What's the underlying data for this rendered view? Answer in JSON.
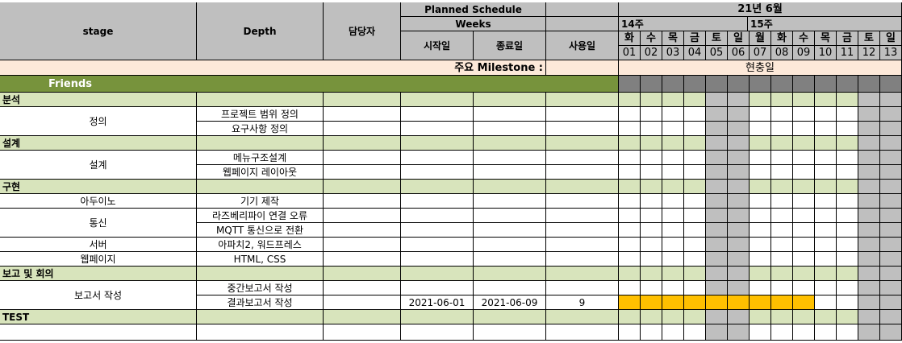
{
  "headers": {
    "stage": "stage",
    "depth": "Depth",
    "owner": "담당자",
    "planned_schedule": "Planned Schedule",
    "weeks": "Weeks",
    "start": "시작일",
    "end": "종료일",
    "used": "사용일",
    "month": "21년 6월",
    "week1": "14주",
    "week2": "15주"
  },
  "days": [
    "화",
    "수",
    "목",
    "금",
    "토",
    "일",
    "월",
    "화",
    "수",
    "목",
    "금",
    "토",
    "일"
  ],
  "dates": [
    "01",
    "02",
    "03",
    "04",
    "05",
    "06",
    "07",
    "08",
    "09",
    "10",
    "11",
    "12",
    "13"
  ],
  "weekend_cols": [
    4,
    5,
    11,
    12
  ],
  "milestone": {
    "label": "주요 Milestone :",
    "value": "현충일"
  },
  "group": "Friends",
  "rows": [
    {
      "kind": "section",
      "stage": "분석"
    },
    {
      "kind": "task",
      "stage": "정의",
      "depth": "프로젝트 범위 정의",
      "span": 2
    },
    {
      "kind": "task",
      "depth": "요구사항 정의"
    },
    {
      "kind": "section",
      "stage": "설계"
    },
    {
      "kind": "task",
      "stage": "설계",
      "depth": "메뉴구조설계",
      "span": 2
    },
    {
      "kind": "task",
      "depth": "웹페이지 레이아웃"
    },
    {
      "kind": "section",
      "stage": "구현"
    },
    {
      "kind": "task",
      "stage": "아두이노",
      "depth": "기기 제작"
    },
    {
      "kind": "task",
      "stage": "통신",
      "depth": "라즈베리파이 연결 오류",
      "span": 2
    },
    {
      "kind": "task",
      "depth": "MQTT 통신으로 전환"
    },
    {
      "kind": "task",
      "stage": "서버",
      "depth": "아파치2, 워드프레스"
    },
    {
      "kind": "task",
      "stage": "웹페이지",
      "depth": "HTML, CSS"
    },
    {
      "kind": "section",
      "stage": "보고 및 회의"
    },
    {
      "kind": "task",
      "stage": "보고서 작성",
      "depth": "중간보고서 작성",
      "span": 2
    },
    {
      "kind": "task",
      "depth": "결과보고서 작성",
      "start": "2021-06-01",
      "end": "2021-06-09",
      "used": "9",
      "bar": [
        0,
        8
      ]
    },
    {
      "kind": "section",
      "stage": "TEST"
    },
    {
      "kind": "task"
    }
  ],
  "colors": {
    "header": "#bfbfbf",
    "milestone": "#fde9d9",
    "group": "#77933c",
    "section": "#d8e4bc",
    "weekend": "#bfbfbf",
    "bar": "#ffc000"
  }
}
